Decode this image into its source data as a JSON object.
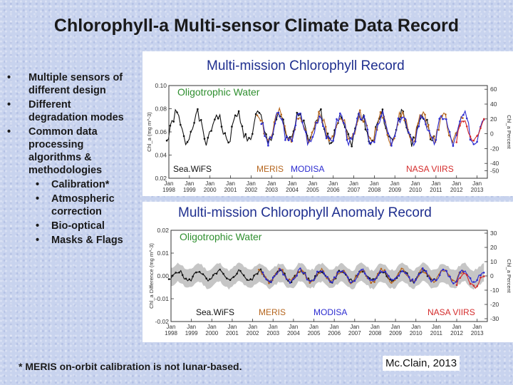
{
  "slide": {
    "title": "Chlorophyll-a Multi-sensor Climate Data Record",
    "bullets": [
      {
        "text": "Multiple sensors of different design",
        "lines": [
          "Multiple sensors of",
          "different design"
        ],
        "level": 1
      },
      {
        "text": "Different degradation modes",
        "lines": [
          "Different",
          "degradation modes"
        ],
        "level": 1
      },
      {
        "text": "Common data processing algorithms & methodologies",
        "lines": [
          "Common data",
          "processing",
          "algorithms &",
          "methodologies"
        ],
        "level": 1
      },
      {
        "text": "Calibration*",
        "lines": [
          "Calibration*"
        ],
        "level": 2
      },
      {
        "text": "Atmospheric correction",
        "lines": [
          "Atmospheric",
          "correction"
        ],
        "level": 2
      },
      {
        "text": "Bio-optical",
        "lines": [
          "Bio-optical"
        ],
        "level": 2
      },
      {
        "text": "Masks & Flags",
        "lines": [
          "Masks & Flags"
        ],
        "level": 2
      }
    ],
    "footnote": "* MERIS on-orbit calibration is not lunar-based.",
    "credit": "Mc.Clain, 2013"
  },
  "colors": {
    "seawifs": "#111111",
    "meris": "#b5651d",
    "modisa": "#2b2bd0",
    "viirs": "#d42b2b",
    "title_blue": "#1f2f8f",
    "subtitle_green": "#2f8f2f",
    "envelope": "#b8b8b8"
  },
  "chart_data": [
    {
      "type": "line",
      "title": "Multi-mission Chlorophyll Record",
      "subtitle": "Oligotrophic Water",
      "xlabel": "",
      "ylabel": "Chl_a (mg m^-3)",
      "ylabel_right": "Chl_a Percent",
      "xlim": [
        1998.0,
        2013.5
      ],
      "ylim": [
        0.02,
        0.1
      ],
      "yticks": [
        "0.02",
        "0.04",
        "0.06",
        "0.08",
        "0.10"
      ],
      "ytick_values": [
        0.02,
        0.04,
        0.06,
        0.08,
        0.1
      ],
      "right_ticks": [
        "-50",
        "-40",
        "-20",
        "0",
        "20",
        "40",
        "60"
      ],
      "right_tick_values": [
        -50,
        -40,
        -20,
        0,
        20,
        40,
        60
      ],
      "right_ylim": [
        -60,
        65
      ],
      "x_tick_labels": [
        "1998",
        "1999",
        "2000",
        "2001",
        "2002",
        "2003",
        "2004",
        "2005",
        "2006",
        "2007",
        "2008",
        "2009",
        "2010",
        "2011",
        "2012",
        "2013"
      ],
      "x_tick_month": "Jan",
      "series": [
        {
          "name": "Sea.WiFS",
          "start": 1997.9,
          "end": 2010.9,
          "mean": 0.0635,
          "amp": 0.012,
          "seed": 1
        },
        {
          "name": "MERIS",
          "start": 2002.3,
          "end": 2012.3,
          "mean": 0.064,
          "amp": 0.012,
          "seed": 2
        },
        {
          "name": "MODISA",
          "start": 2002.5,
          "end": 2013.4,
          "mean": 0.0625,
          "amp": 0.012,
          "seed": 3
        },
        {
          "name": "NASA VIIRS",
          "start": 2012.0,
          "end": 2013.4,
          "mean": 0.0605,
          "amp": 0.01,
          "seed": 4
        }
      ],
      "legend": [
        "Sea.WiFS",
        "MERIS",
        "MODISA",
        "NASA VIIRS"
      ]
    },
    {
      "type": "line",
      "title": "Multi-mission Chlorophyll Anomaly Record",
      "subtitle": "Oligotrophic Water",
      "xlabel": "",
      "ylabel": "Chl_a Difference (mg m^-3)",
      "ylabel_right": "Chl_a Percent",
      "xlim": [
        1998.0,
        2013.5
      ],
      "ylim": [
        -0.02,
        0.02
      ],
      "yticks": [
        "-0.02",
        "-0.01",
        "0.00",
        "0.01",
        "0.02"
      ],
      "ytick_values": [
        -0.02,
        -0.01,
        0.0,
        0.01,
        0.02
      ],
      "right_ticks": [
        "-30",
        "-20",
        "-10",
        "0",
        "10",
        "20",
        "30"
      ],
      "right_tick_values": [
        -30,
        -20,
        -10,
        0,
        10,
        20,
        30
      ],
      "right_ylim": [
        -32,
        32
      ],
      "x_tick_labels": [
        "1998",
        "1999",
        "2000",
        "2001",
        "2002",
        "2003",
        "2004",
        "2005",
        "2006",
        "2007",
        "2008",
        "2009",
        "2010",
        "2011",
        "2012",
        "2013"
      ],
      "x_tick_month": "Jan",
      "series": [
        {
          "name": "Sea.WiFS",
          "start": 1997.9,
          "end": 2010.9,
          "mean": 0.0,
          "amp": 0.0022,
          "seed": 5
        },
        {
          "name": "MERIS",
          "start": 2002.3,
          "end": 2012.3,
          "mean": 0.0,
          "amp": 0.0024,
          "seed": 6
        },
        {
          "name": "MODISA",
          "start": 2002.5,
          "end": 2013.4,
          "mean": 0.0,
          "amp": 0.0024,
          "seed": 7
        },
        {
          "name": "NASA VIIRS",
          "start": 2012.0,
          "end": 2013.4,
          "mean": -0.002,
          "amp": 0.003,
          "seed": 8
        }
      ],
      "envelope_halfwidth": 0.004,
      "legend": [
        "Sea.WiFS",
        "MERIS",
        "MODISA",
        "NASA VIIRS"
      ]
    }
  ]
}
